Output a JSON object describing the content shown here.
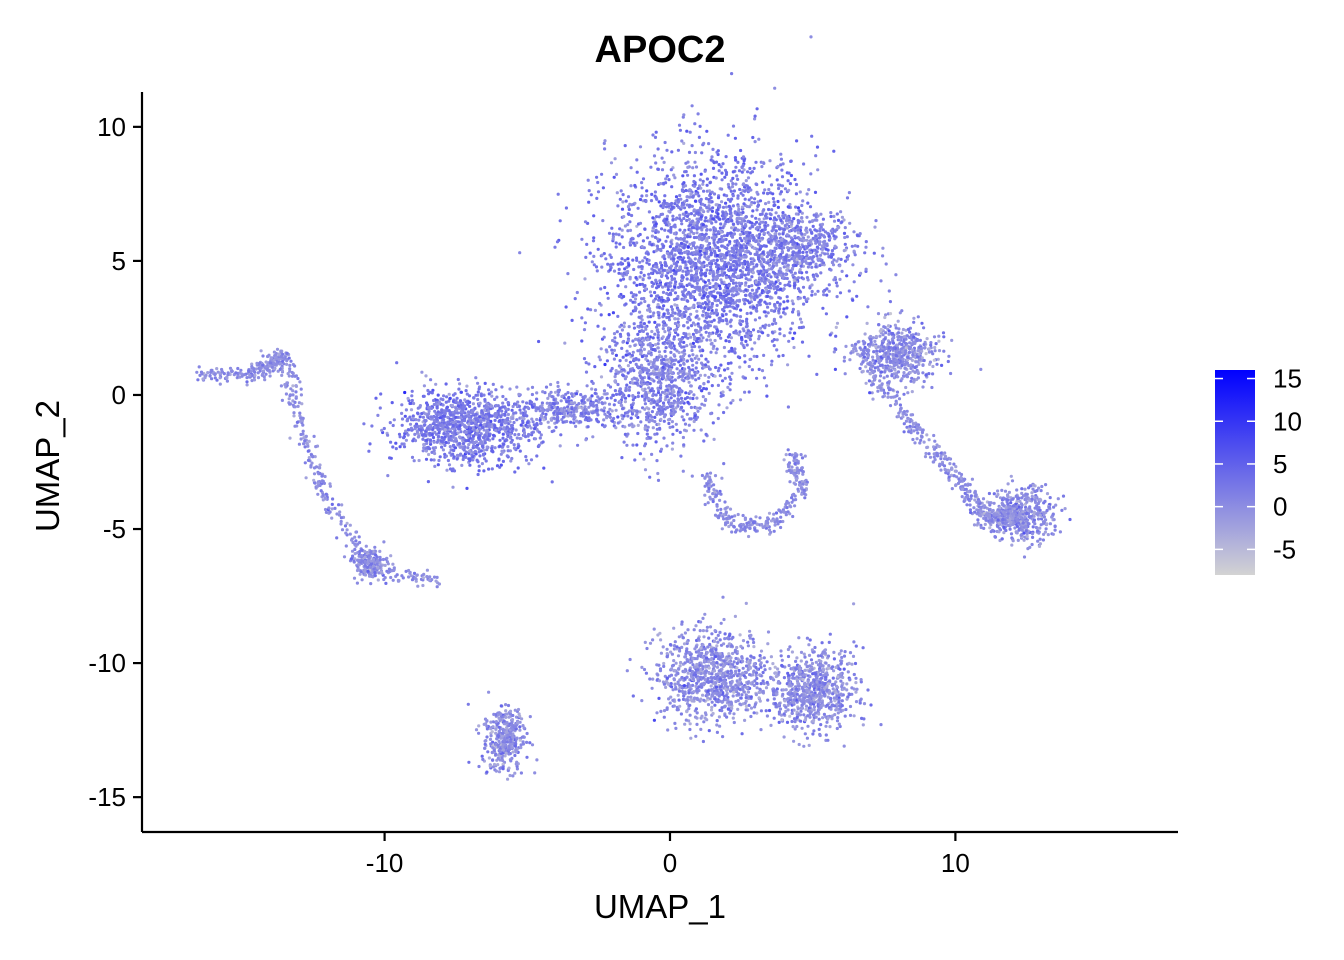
{
  "chart_data": {
    "type": "scatter",
    "title": "APOC2",
    "xlabel": "UMAP_1",
    "ylabel": "UMAP_2",
    "xlim": [
      -18.5,
      17.8
    ],
    "ylim": [
      -16.3,
      11.3
    ],
    "x_ticks": [
      -10,
      0,
      10
    ],
    "y_ticks": [
      10,
      5,
      0,
      -5,
      -10,
      -15
    ],
    "grid": false,
    "legend_position": "right",
    "color_scale": {
      "low_color": "#d3d3d3",
      "high_color": "#0000ff",
      "min": -8,
      "max": 16,
      "ticks": [
        15,
        10,
        5,
        0,
        -5
      ]
    },
    "point_color": "#a98fe6",
    "clusters": [
      {
        "id": "central-upper",
        "x": 1.5,
        "y": 5.0,
        "sx": 2.4,
        "sy": 2.6,
        "n": 2600,
        "value": 2
      },
      {
        "id": "central-upper-right",
        "x": 4.5,
        "y": 5.5,
        "sx": 1.5,
        "sy": 1.0,
        "n": 500,
        "value": 1
      },
      {
        "id": "central-lower",
        "x": -0.5,
        "y": 0.5,
        "sx": 1.4,
        "sy": 1.6,
        "n": 800,
        "value": 1
      },
      {
        "id": "left-cluster",
        "x": -7.2,
        "y": -1.2,
        "sx": 1.6,
        "sy": 0.9,
        "n": 1100,
        "value": 2
      },
      {
        "id": "left-bridge",
        "x": -3.5,
        "y": -0.5,
        "sx": 1.2,
        "sy": 0.5,
        "n": 300,
        "value": 1
      },
      {
        "id": "right-arm",
        "x": 8.0,
        "y": 1.5,
        "sx": 0.9,
        "sy": 0.8,
        "n": 500,
        "value": 0
      },
      {
        "id": "right-far",
        "x": 12.3,
        "y": -4.5,
        "sx": 0.8,
        "sy": 0.7,
        "n": 450,
        "value": 0
      },
      {
        "id": "bottom-middle-left",
        "x": 1.5,
        "y": -10.5,
        "sx": 1.3,
        "sy": 1.1,
        "n": 900,
        "value": 0
      },
      {
        "id": "bottom-middle-right",
        "x": 5.0,
        "y": -11.0,
        "sx": 1.0,
        "sy": 1.0,
        "n": 700,
        "value": 0
      },
      {
        "id": "bottom-left",
        "x": -5.8,
        "y": -12.8,
        "sx": 0.5,
        "sy": 0.8,
        "n": 350,
        "value": 0
      },
      {
        "id": "far-left-end",
        "x": -10.5,
        "y": -6.3,
        "sx": 0.4,
        "sy": 0.4,
        "n": 150,
        "value": 0
      }
    ],
    "trails": [
      {
        "id": "far-left-arc",
        "points": [
          [
            -16.5,
            0.7
          ],
          [
            -14.5,
            0.8
          ],
          [
            -13.5,
            1.5
          ],
          [
            -13,
            -1
          ],
          [
            -12,
            -4
          ],
          [
            -10.5,
            -6.5
          ],
          [
            -8,
            -7
          ]
        ],
        "n": 500,
        "value": 0
      },
      {
        "id": "central-arc",
        "points": [
          [
            1.2,
            -3
          ],
          [
            2,
            -4.8
          ],
          [
            3.5,
            -4.9
          ],
          [
            4.6,
            -3.5
          ],
          [
            4.3,
            -2.2
          ]
        ],
        "n": 300,
        "value": 0
      },
      {
        "id": "right-diagonal",
        "points": [
          [
            6.5,
            2
          ],
          [
            8,
            -0.5
          ],
          [
            10,
            -3
          ],
          [
            11,
            -4.5
          ],
          [
            12.5,
            -4.5
          ]
        ],
        "n": 400,
        "value": 0
      }
    ]
  }
}
